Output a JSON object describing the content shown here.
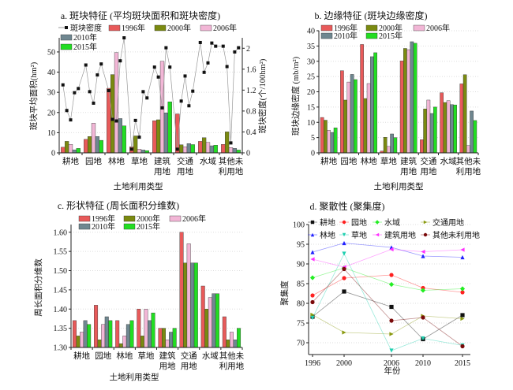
{
  "chart_data": [
    {
      "type": "bar",
      "title": "a. 斑块特征 (平均斑块面积和斑块密度)",
      "xlabel": "土地利用类型",
      "ylabel": "斑块平均面积(hm²)",
      "ylabel_right": "斑块密度(个/100hm²)",
      "categories": [
        [
          "耕地"
        ],
        [
          "园地"
        ],
        [
          "林地"
        ],
        [
          "草地"
        ],
        [
          "建筑",
          "用地"
        ],
        [
          "交通",
          "用地"
        ],
        [
          "水域"
        ],
        [
          "其他未",
          "利用地"
        ]
      ],
      "ylim": [
        0,
        57
      ],
      "yticks": [
        "0",
        "10",
        "20",
        "30",
        "40",
        "50"
      ],
      "ylim_right": [
        0,
        2.2
      ],
      "yticks_right": [
        "0",
        "0.4",
        "0.8",
        "1.2",
        "1.6",
        "2"
      ],
      "series": [
        {
          "name": "1996年",
          "color": "#e85a5a",
          "values": [
            2.8,
            6.7,
            32,
            3.0,
            15.9,
            19.3,
            5.7,
            4.2
          ]
        },
        {
          "name": "2000年",
          "color": "#7a8a10",
          "values": [
            5.7,
            8.1,
            38.8,
            8.4,
            16.4,
            4.0,
            7.5,
            10.4
          ]
        },
        {
          "name": "2006年",
          "color": "#f2b6d6",
          "values": [
            4.2,
            14.7,
            49.7,
            1.8,
            45.4,
            3.0,
            5.2,
            2.6
          ]
        },
        {
          "name": "2010年",
          "color": "#6f8790",
          "values": [
            1.5,
            8.1,
            17.0,
            1.4,
            19.8,
            4.6,
            3.5,
            2.2
          ]
        },
        {
          "name": "2015年",
          "color": "#22dd22",
          "values": [
            2.2,
            6.2,
            13.4,
            1.1,
            25.3,
            4.1,
            3.8,
            1.4
          ]
        }
      ],
      "line_series": {
        "name": "斑块密度",
        "color": "#999999",
        "axis": "right",
        "values": [
          [
            1.3,
            0.81,
            0.63,
            1.15,
            1.23
          ],
          [
            1.68,
            1.17,
            0.95,
            1.49,
            1.7
          ],
          [
            1.19,
            0.64,
            0.61,
            1.76,
            2.2
          ],
          [
            0.07,
            0.62,
            0.3,
            1.17,
            1.05
          ],
          [
            1.64,
            1.45,
            0.86,
            2.01,
            1.64
          ],
          [
            0.07,
            0.99,
            1.47,
            0.9,
            1.18
          ],
          [
            2.11,
            1.54,
            1.72,
            2.1,
            2.04
          ],
          [
            2.04,
            1.65,
            0.19,
            1.93,
            2.01
          ]
        ]
      },
      "legend": "top-left"
    },
    {
      "type": "bar",
      "title": "b. 边缘特征 (斑块边缘密度)",
      "xlabel": "土地利用类型",
      "ylabel": "斑块边缘密度 (mb/m²)",
      "categories": [
        [
          "耕地"
        ],
        [
          "园地"
        ],
        [
          "林地"
        ],
        [
          "草地"
        ],
        [
          "建筑",
          "用地"
        ],
        [
          "交通",
          "用地"
        ],
        [
          "水域"
        ],
        [
          "其他未",
          "利用地"
        ]
      ],
      "ylim": [
        0,
        40
      ],
      "yticks": [
        "0",
        "5",
        "10",
        "15",
        "20",
        "25",
        "30",
        "35",
        "40"
      ],
      "series": [
        {
          "name": "1996年",
          "color": "#e85a5a",
          "values": [
            11.6,
            26.9,
            35.5,
            0.6,
            30.1,
            4.3,
            19.7,
            22.6
          ]
        },
        {
          "name": "2000年",
          "color": "#7a8a10",
          "values": [
            10.7,
            17.3,
            17.8,
            5.1,
            34.2,
            14.4,
            16.5,
            25.6
          ]
        },
        {
          "name": "2006年",
          "color": "#f2b6d6",
          "values": [
            7.4,
            23.2,
            22.7,
            2.1,
            33.8,
            17.3,
            17.1,
            2.4
          ]
        },
        {
          "name": "2010年",
          "color": "#6f8790",
          "values": [
            6.7,
            25.7,
            31.5,
            6.2,
            36.4,
            12.9,
            15.8,
            13.7
          ]
        },
        {
          "name": "2015年",
          "color": "#22dd22",
          "values": [
            8.2,
            24.0,
            32.8,
            5.0,
            35.9,
            15.0,
            15.7,
            10.6
          ]
        }
      ],
      "legend": "top"
    },
    {
      "type": "bar",
      "title": "c. 形状特征 (周长面积分维数)",
      "xlabel": "土地利用类型",
      "ylabel": "周长面积分维数",
      "categories": [
        [
          "耕地"
        ],
        [
          "园地"
        ],
        [
          "林地"
        ],
        [
          "草地"
        ],
        [
          "建筑",
          "用地"
        ],
        [
          "交通",
          "用地"
        ],
        [
          "水域"
        ],
        [
          "其他未",
          "利用地"
        ]
      ],
      "ylim": [
        1.3,
        1.62
      ],
      "yticks": [
        "1.30",
        "1.35",
        "1.40",
        "1.45",
        "1.50",
        "1.55",
        "1.60"
      ],
      "series": [
        {
          "name": "1996年",
          "color": "#e85a5a",
          "values": [
            1.37,
            1.41,
            1.37,
            1.4,
            1.35,
            1.6,
            1.46,
            1.38
          ]
        },
        {
          "name": "2000年",
          "color": "#7a8a10",
          "values": [
            1.33,
            1.32,
            1.31,
            1.33,
            1.35,
            1.52,
            1.4,
            1.32
          ]
        },
        {
          "name": "2006年",
          "color": "#f2b6d6",
          "values": [
            1.34,
            1.36,
            1.33,
            1.4,
            1.32,
            1.57,
            1.43,
            1.34
          ]
        },
        {
          "name": "2010年",
          "color": "#6f8790",
          "values": [
            1.37,
            1.38,
            1.36,
            1.37,
            1.34,
            1.52,
            1.44,
            1.32
          ]
        },
        {
          "name": "2015年",
          "color": "#22dd22",
          "values": [
            1.36,
            1.37,
            1.37,
            1.39,
            1.35,
            1.52,
            1.44,
            1.35
          ]
        }
      ],
      "legend": "top"
    },
    {
      "type": "line",
      "title": "d. 聚散性 (聚集度)",
      "xlabel": "年份",
      "ylabel": "聚集度",
      "x": [
        1996,
        2000,
        2006,
        2010,
        2015
      ],
      "xticks": [
        "1996",
        "2000",
        "2006",
        "2010",
        "2015"
      ],
      "xlim": [
        1995.5,
        2016
      ],
      "ylim": [
        67,
        100
      ],
      "yticks": [
        "70",
        "75",
        "80",
        "85",
        "90",
        "95",
        "100"
      ],
      "series": [
        {
          "name": "耕地",
          "color": "#111111",
          "marker": "square",
          "values": [
            76.6,
            83.0,
            79.1,
            70.9,
            77.0
          ]
        },
        {
          "name": "园地",
          "color": "#ff2020",
          "marker": "circle",
          "values": [
            82.0,
            86.4,
            87.2,
            83.9,
            82.8
          ]
        },
        {
          "name": "水域",
          "color": "#22ee22",
          "marker": "diamond",
          "values": [
            86.5,
            89.0,
            84.8,
            83.3,
            83.7
          ]
        },
        {
          "name": "交通用地",
          "color": "#8a9a10",
          "marker": "triangle-right",
          "values": [
            77.1,
            72.6,
            72.2,
            76.8,
            76.1
          ]
        },
        {
          "name": "林地",
          "color": "#2020ff",
          "marker": "triangle-up",
          "values": [
            93.0,
            95.3,
            94.2,
            92.0,
            91.7
          ]
        },
        {
          "name": "草地",
          "color": "#20d0b0",
          "marker": "triangle-down",
          "values": [
            76.3,
            92.6,
            68.0,
            71.1,
            69.3
          ]
        },
        {
          "name": "建筑用地",
          "color": "#ff30ff",
          "marker": "triangle-left",
          "values": [
            91.2,
            89.2,
            93.7,
            93.1,
            93.6
          ]
        },
        {
          "name": "其他未利用地",
          "color": "#7a0a0a",
          "marker": "circle",
          "values": [
            80.3,
            88.7,
            75.6,
            76.4,
            69.1
          ]
        }
      ],
      "legend": "top"
    }
  ]
}
